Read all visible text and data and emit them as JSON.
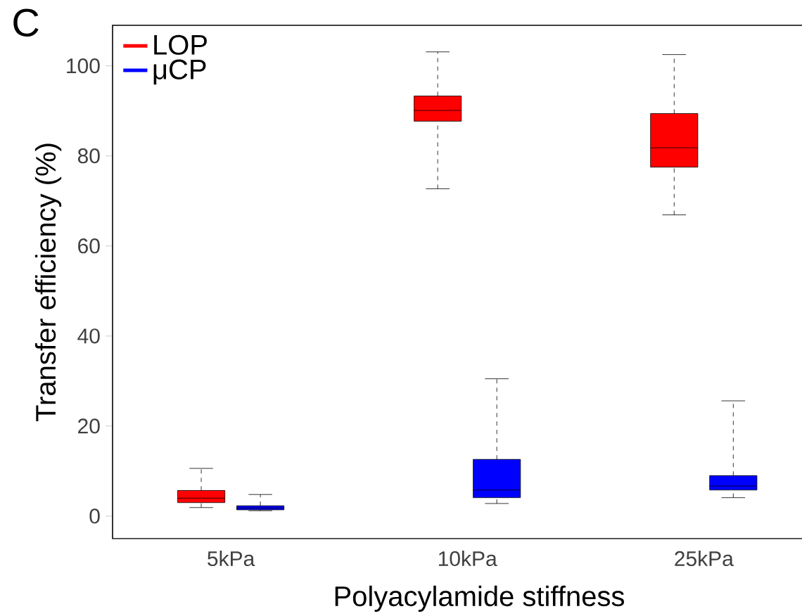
{
  "chart_data": {
    "type": "box",
    "xlabel": "Polyacylamide stiffness",
    "ylabel": "Transfer efficiency (%)",
    "annotations": [
      "C"
    ],
    "categories": [
      "5kPa",
      "10kPa",
      "25kPa"
    ],
    "ylim": [
      -5,
      109
    ],
    "yticks": [
      0,
      20,
      40,
      60,
      80,
      100
    ],
    "legend": "top left",
    "series": [
      {
        "name": "LOP",
        "color": "#ff0000",
        "boxes": [
          {
            "low": 1.9,
            "q1": 3.0,
            "median": 4.0,
            "q3": 5.7,
            "high": 10.6
          },
          {
            "low": 72.7,
            "q1": 87.7,
            "median": 90.1,
            "q3": 93.3,
            "high": 103.1
          },
          {
            "low": 66.9,
            "q1": 77.5,
            "median": 81.8,
            "q3": 89.4,
            "high": 102.5
          }
        ]
      },
      {
        "name": "μCP",
        "color": "#0000ff",
        "boxes": [
          {
            "low": 1.2,
            "q1": 1.4,
            "median": 1.8,
            "q3": 2.3,
            "high": 4.8
          },
          {
            "low": 2.8,
            "q1": 4.1,
            "median": 5.8,
            "q3": 12.6,
            "high": 30.5
          },
          {
            "low": 4.1,
            "q1": 5.8,
            "median": 6.7,
            "q3": 9.0,
            "high": 25.6
          }
        ]
      }
    ]
  }
}
